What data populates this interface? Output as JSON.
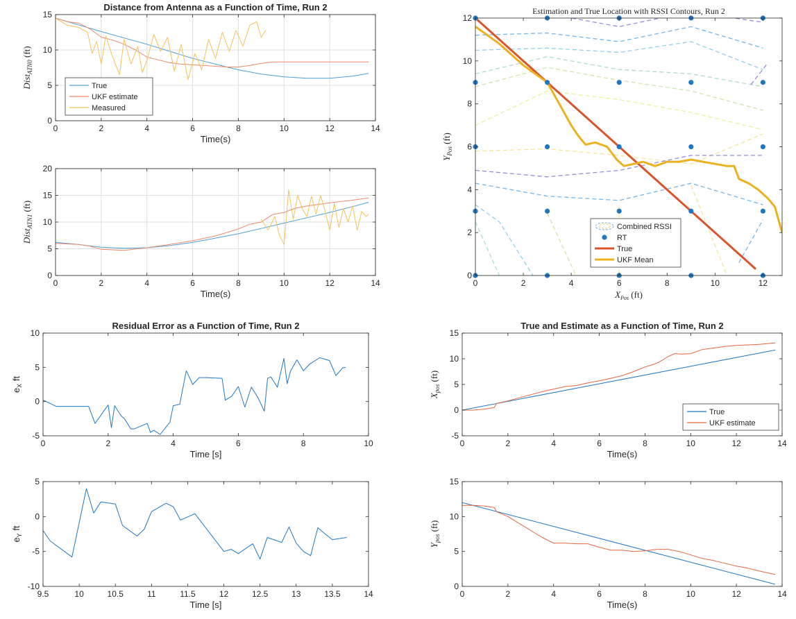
{
  "chart_data": [
    {
      "type": "line",
      "title": "Distance from Antenna as a Function of Time, Run 2",
      "xlabel": "Time(s)",
      "ylabel": "Dist",
      "ylabel_sub": "ATN0",
      "ylabel_unit": "(ft)",
      "xlim": [
        0,
        14
      ],
      "ylim": [
        0,
        15
      ],
      "xticks": [
        0,
        2,
        4,
        6,
        8,
        10,
        12,
        14
      ],
      "yticks": [
        0,
        5,
        10,
        15
      ],
      "grid": true,
      "legend_position": "lower-left",
      "series": [
        {
          "name": "True",
          "color": "#4f9fd4",
          "x": [
            0,
            2,
            4,
            6,
            8,
            9,
            10,
            11,
            12,
            13,
            13.7
          ],
          "y": [
            14.5,
            12.6,
            10.8,
            8.8,
            7.2,
            6.6,
            6.2,
            6.0,
            6.0,
            6.3,
            6.7
          ]
        },
        {
          "name": "UKF estimate",
          "color": "#ee8a6b",
          "x": [
            0,
            0.5,
            1.0,
            1.5,
            2.0,
            2.5,
            3.0,
            3.5,
            4.0,
            4.5,
            5.0,
            5.5,
            6.0,
            6.5,
            7.0,
            7.5,
            8.0,
            8.5,
            9.0,
            9.5,
            10.0,
            11.0,
            12.0,
            13.0,
            13.7
          ],
          "y": [
            14.5,
            14.0,
            13.8,
            13.0,
            11.8,
            11.4,
            10.8,
            10.0,
            9.0,
            8.6,
            8.2,
            8.0,
            7.9,
            7.8,
            7.7,
            7.6,
            7.6,
            7.8,
            8.1,
            8.3,
            8.3,
            8.3,
            8.3,
            8.3,
            8.3
          ]
        },
        {
          "name": "Measured",
          "color": "#f5c25c",
          "x": [
            0,
            0.5,
            1.0,
            1.4,
            1.6,
            1.8,
            2.0,
            2.2,
            2.5,
            2.8,
            3.0,
            3.3,
            3.6,
            3.8,
            4.0,
            4.3,
            4.6,
            4.9,
            5.2,
            5.5,
            5.8,
            6.1,
            6.4,
            6.7,
            7.0,
            7.3,
            7.6,
            7.9,
            8.2,
            8.5,
            8.8,
            9.0,
            9.2
          ],
          "y": [
            14.5,
            13.5,
            13.2,
            12.5,
            9.5,
            11.2,
            8.0,
            12.0,
            9.0,
            6.5,
            11.5,
            8.0,
            10.5,
            6.8,
            8.5,
            12.2,
            9.8,
            11.8,
            7.0,
            10.8,
            5.8,
            9.5,
            7.2,
            11.5,
            8.8,
            12.5,
            9.8,
            12.8,
            10.5,
            13.5,
            14.0,
            11.8,
            12.8
          ]
        }
      ]
    },
    {
      "type": "line",
      "title": "",
      "xlabel": "Time(s)",
      "ylabel": "Dist",
      "ylabel_sub": "ATN1",
      "ylabel_unit": "(ft)",
      "xlim": [
        0,
        14
      ],
      "ylim": [
        0,
        20
      ],
      "xticks": [
        0,
        2,
        4,
        6,
        8,
        10,
        12,
        14
      ],
      "yticks": [
        0,
        5,
        10,
        15,
        20
      ],
      "grid": true,
      "series": [
        {
          "name": "True",
          "color": "#4f9fd4",
          "x": [
            0,
            1,
            2,
            3,
            4,
            5,
            6,
            7,
            8,
            9,
            10,
            11,
            12,
            13,
            13.7
          ],
          "y": [
            6.2,
            5.8,
            5.3,
            5.1,
            5.2,
            5.6,
            6.2,
            7.0,
            7.8,
            8.8,
            9.8,
            10.8,
            11.8,
            12.9,
            13.7
          ]
        },
        {
          "name": "UKF estimate",
          "color": "#ee8a6b",
          "x": [
            0,
            1,
            1.5,
            2,
            3,
            4,
            5,
            6,
            7,
            8,
            8.5,
            9,
            9.5,
            10,
            10.5,
            11,
            12,
            13,
            13.7
          ],
          "y": [
            6.0,
            5.8,
            5.5,
            4.9,
            4.7,
            5.2,
            5.8,
            6.5,
            7.4,
            8.7,
            9.6,
            10.0,
            11.4,
            11.8,
            12.6,
            13.0,
            13.6,
            14.1,
            14.5
          ]
        },
        {
          "name": "Measured",
          "color": "#f5c25c",
          "x": [
            9.0,
            9.3,
            9.6,
            9.8,
            10.0,
            10.2,
            10.4,
            10.6,
            10.8,
            11.0,
            11.2,
            11.4,
            11.6,
            11.8,
            12.0,
            12.2,
            12.4,
            12.6,
            12.8,
            13.0,
            13.2,
            13.4,
            13.6,
            13.7
          ],
          "y": [
            10.5,
            8.5,
            11.0,
            7.5,
            5.8,
            16.0,
            10.5,
            15.0,
            12.5,
            11.0,
            14.8,
            11.5,
            15.0,
            12.0,
            8.5,
            13.5,
            9.0,
            12.5,
            10.0,
            13.0,
            8.5,
            12.0,
            11.0,
            11.5
          ]
        }
      ]
    },
    {
      "type": "line",
      "title": "Estimation and True Location with RSSI Contours, Run 2",
      "xlabel": "X",
      "xlabel_sub": "Pos",
      "xlabel_unit": "(ft)",
      "ylabel": "Y",
      "ylabel_sub": "Pos",
      "ylabel_unit": "(ft)",
      "xlim": [
        0,
        12.8
      ],
      "ylim": [
        0,
        12
      ],
      "xticks": [
        0,
        2,
        4,
        6,
        8,
        10,
        12
      ],
      "yticks": [
        0,
        2,
        4,
        6,
        8,
        10,
        12
      ],
      "grid": false,
      "legend_position": "bottom-center",
      "contour_series": {
        "name": "Combined RSSI"
      },
      "scatter": {
        "name": "RT",
        "color": "#1f77c4",
        "x": [
          0,
          3,
          6,
          9,
          12,
          0,
          3,
          6,
          9,
          12,
          0,
          3,
          6,
          9,
          12,
          0,
          3,
          6,
          9,
          12,
          0,
          3,
          6,
          9,
          12
        ],
        "y": [
          12,
          12,
          12,
          12,
          12,
          9,
          9,
          9,
          9,
          9,
          6,
          6,
          6,
          6,
          6,
          3,
          3,
          3,
          3,
          3,
          0,
          0,
          0,
          0,
          0
        ]
      },
      "series": [
        {
          "name": "True",
          "color": "#d9532b",
          "x": [
            0,
            11.7
          ],
          "y": [
            12,
            0.3
          ]
        },
        {
          "name": "UKF Mean",
          "color": "#ecb11f",
          "x": [
            0,
            0.5,
            1.0,
            1.5,
            2.0,
            2.5,
            3.0,
            3.5,
            4.0,
            4.3,
            4.6,
            5.0,
            5.5,
            5.9,
            6.2,
            6.6,
            7.0,
            7.5,
            8.0,
            8.5,
            9.0,
            9.5,
            10.0,
            10.5,
            10.8,
            11.0,
            11.4,
            11.8,
            12.2,
            12.5,
            12.8
          ],
          "y": [
            11.6,
            11.2,
            10.8,
            10.3,
            9.8,
            9.4,
            9.0,
            8.0,
            7.0,
            6.5,
            6.1,
            6.2,
            6.0,
            5.4,
            5.1,
            5.2,
            5.3,
            5.1,
            5.3,
            5.3,
            5.4,
            5.3,
            5.2,
            5.1,
            5.1,
            4.5,
            4.3,
            4.0,
            3.6,
            3.2,
            2.0
          ]
        }
      ]
    },
    {
      "type": "line",
      "title": "Residual Error as a Function of Time, Run 2",
      "xlabel": "Time [s]",
      "ylabel": "e",
      "ylabel_sub": "X",
      "ylabel_unit": "ft",
      "xlim": [
        0,
        10
      ],
      "ylim": [
        -5,
        10
      ],
      "xticks": [
        0,
        2,
        4,
        6,
        8,
        10
      ],
      "yticks": [
        -5,
        0,
        5,
        10
      ],
      "grid": false,
      "series": [
        {
          "name": "e_X",
          "color": "#1f77c4",
          "x": [
            0,
            0.1,
            0.4,
            1.4,
            1.6,
            2.0,
            2.1,
            2.2,
            2.4,
            2.5,
            2.7,
            2.8,
            3.0,
            3.2,
            3.3,
            3.4,
            3.6,
            3.8,
            3.9,
            4.0,
            4.2,
            4.4,
            4.6,
            4.8,
            5.0,
            5.5,
            5.6,
            5.8,
            6.0,
            6.2,
            6.4,
            6.6,
            6.8,
            6.9,
            7.0,
            7.2,
            7.4,
            7.5,
            7.6,
            7.8,
            8.0,
            8.2,
            8.5,
            8.8,
            9.0,
            9.2,
            9.3
          ],
          "y": [
            0.2,
            0,
            -0.7,
            -0.7,
            -3.2,
            -0.5,
            -3.8,
            -0.6,
            -2.1,
            -2.5,
            -4.0,
            -4.0,
            -3.6,
            -3.2,
            -4.5,
            -4.2,
            -4.8,
            -3.6,
            -3.0,
            -0.6,
            -0.4,
            4.5,
            2.5,
            3.5,
            3.5,
            3.4,
            0.2,
            0.8,
            2.2,
            -0.8,
            2.1,
            0.6,
            -1.4,
            3.4,
            3.6,
            2.1,
            6.3,
            2.6,
            4.4,
            6.1,
            4.5,
            5.5,
            6.4,
            6.0,
            3.8,
            4.9,
            5.0
          ]
        }
      ]
    },
    {
      "type": "line",
      "title": "",
      "xlabel": "Time [s]",
      "ylabel": "e",
      "ylabel_sub": "Y",
      "ylabel_unit": "ft",
      "xlim": [
        9.5,
        14
      ],
      "ylim": [
        -10,
        5
      ],
      "xticks": [
        9.5,
        10,
        10.5,
        11,
        11.5,
        12,
        12.5,
        13,
        13.5,
        14
      ],
      "yticks": [
        -10,
        -5,
        0,
        5
      ],
      "grid": false,
      "series": [
        {
          "name": "e_Y",
          "color": "#1f77c4",
          "x": [
            9.5,
            9.6,
            9.9,
            10.1,
            10.2,
            10.3,
            10.5,
            10.6,
            10.8,
            10.9,
            11.0,
            11.2,
            11.3,
            11.4,
            11.6,
            12.0,
            12.1,
            12.2,
            12.4,
            12.5,
            12.6,
            12.8,
            12.9,
            13.0,
            13.1,
            13.2,
            13.3,
            13.4,
            13.5,
            13.7
          ],
          "y": [
            -2.0,
            -3.5,
            -5.8,
            4.0,
            0.5,
            2.1,
            1.8,
            -1.3,
            -2.8,
            -1.8,
            0.7,
            1.9,
            1.4,
            -0.5,
            0.4,
            -5.0,
            -4.7,
            -5.3,
            -3.9,
            -6.1,
            -3.0,
            -3.7,
            -1.5,
            -3.8,
            -5.0,
            -5.6,
            -1.6,
            -2.5,
            -3.3,
            -3.0
          ]
        }
      ]
    },
    {
      "type": "line",
      "title": "True and Estimate as a Function of Time, Run 2",
      "xlabel": "Time(s)",
      "ylabel": "X",
      "ylabel_sub": "pos",
      "ylabel_unit": "(ft)",
      "xlim": [
        0,
        14
      ],
      "ylim": [
        -5,
        15
      ],
      "xticks": [
        0,
        2,
        4,
        6,
        8,
        10,
        12,
        14
      ],
      "yticks": [
        -5,
        0,
        5,
        10,
        15
      ],
      "grid": false,
      "legend_position": "lower-right",
      "series": [
        {
          "name": "True",
          "color": "#1f77c4",
          "x": [
            0,
            13.7
          ],
          "y": [
            0,
            11.7
          ]
        },
        {
          "name": "UKF estimate",
          "color": "#e2673e",
          "x": [
            0,
            0.5,
            1.0,
            1.4,
            1.5,
            2.0,
            2.5,
            3.0,
            3.5,
            4.0,
            4.5,
            5.0,
            5.5,
            6.0,
            6.5,
            7.0,
            7.5,
            8.0,
            8.3,
            8.6,
            9.0,
            9.3,
            9.6,
            10.0,
            10.5,
            11.0,
            11.5,
            12.0,
            12.5,
            13.0,
            13.7
          ],
          "y": [
            0,
            0,
            0.2,
            0.5,
            1.3,
            1.8,
            2.4,
            3.0,
            3.6,
            4.1,
            4.6,
            4.8,
            5.3,
            5.7,
            6.2,
            6.7,
            7.5,
            8.4,
            8.8,
            9.3,
            10.4,
            11.0,
            10.9,
            11.0,
            11.8,
            12.1,
            12.4,
            12.6,
            12.7,
            12.8,
            13.1
          ]
        }
      ]
    },
    {
      "type": "line",
      "title": "",
      "xlabel": "Time(s)",
      "ylabel": "Y",
      "ylabel_sub": "pos",
      "ylabel_unit": "(ft)",
      "xlim": [
        0,
        14
      ],
      "ylim": [
        0,
        15
      ],
      "xticks": [
        0,
        2,
        4,
        6,
        8,
        10,
        12,
        14
      ],
      "yticks": [
        0,
        5,
        10,
        15
      ],
      "grid": false,
      "series": [
        {
          "name": "True",
          "color": "#1f77c4",
          "x": [
            0,
            13.7
          ],
          "y": [
            12.0,
            0.3
          ]
        },
        {
          "name": "UKF estimate",
          "color": "#e2673e",
          "x": [
            0,
            0.5,
            1.0,
            1.4,
            1.5,
            2.0,
            2.5,
            3.0,
            3.5,
            4.0,
            4.5,
            5.0,
            5.5,
            6.0,
            6.5,
            7.0,
            7.5,
            8.0,
            8.5,
            9.0,
            9.5,
            10.0,
            10.5,
            11.0,
            11.5,
            12.0,
            12.5,
            13.0,
            13.7
          ],
          "y": [
            11.6,
            11.6,
            11.5,
            11.3,
            10.7,
            10.0,
            9.0,
            8.0,
            7.0,
            6.2,
            6.2,
            6.1,
            6.1,
            5.6,
            5.2,
            5.2,
            5.0,
            5.1,
            5.3,
            5.3,
            5.0,
            4.5,
            4.0,
            3.7,
            3.3,
            2.9,
            2.6,
            2.2,
            1.7
          ]
        }
      ]
    }
  ]
}
